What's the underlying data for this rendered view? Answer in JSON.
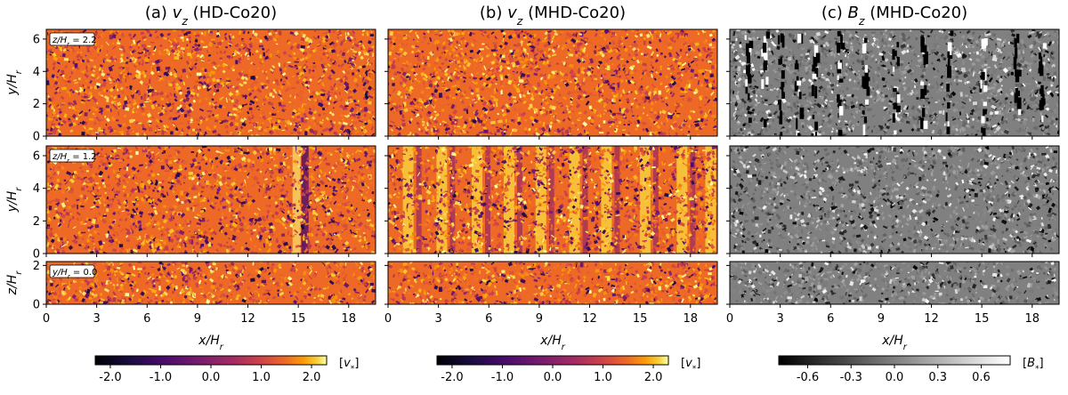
{
  "chart_data": {
    "type": "heatmap",
    "columns": [
      {
        "title": "(a) v_z (HD-Co20)",
        "title_prefix": "(a) ",
        "title_var": "v",
        "title_sub": "z",
        "title_suffix": " (HD-Co20)",
        "field": "vz",
        "run": "HD-Co20",
        "colormap": "inferno"
      },
      {
        "title": "(b) v_z (MHD-Co20)",
        "title_prefix": "(b) ",
        "title_var": "v",
        "title_sub": "z",
        "title_suffix": " (MHD-Co20)",
        "field": "vz",
        "run": "MHD-Co20",
        "colormap": "inferno"
      },
      {
        "title": "(c) B_z (MHD-Co20)",
        "title_prefix": "(c) ",
        "title_var": "B",
        "title_sub": "z",
        "title_suffix": " (MHD-Co20)",
        "field": "Bz",
        "run": "MHD-Co20",
        "colormap": "gray"
      }
    ],
    "rows": [
      {
        "slice": "z/H_r = 2.2",
        "ann_var": "z/H",
        "ann_sub": "r",
        "ann_val": " = 2.2",
        "ylabel_var": "y/H",
        "ylabel_sub": "r",
        "ylim": [
          0,
          6.6
        ],
        "yticks": [
          "0",
          "2",
          "4",
          "6"
        ],
        "ytick_values": [
          0,
          2,
          4,
          6
        ]
      },
      {
        "slice": "z/H_r = 1.2",
        "ann_var": "z/H",
        "ann_sub": "r",
        "ann_val": " = 1.2",
        "ylabel_var": "y/H",
        "ylabel_sub": "r",
        "ylim": [
          0,
          6.6
        ],
        "yticks": [
          "0",
          "2",
          "4",
          "6"
        ],
        "ytick_values": [
          0,
          2,
          4,
          6
        ]
      },
      {
        "slice": "y/H_r = 0.0",
        "ann_var": "y/H",
        "ann_sub": "r",
        "ann_val": " = 0.0",
        "ylabel_var": "z/H",
        "ylabel_sub": "r",
        "ylim": [
          0,
          2.2
        ],
        "yticks": [
          "0",
          "2"
        ],
        "ytick_values": [
          0,
          2
        ]
      }
    ],
    "xlabel_var": "x/H",
    "xlabel_sub": "r",
    "xlim": [
      0,
      19.6
    ],
    "xticks": [
      "0",
      "3",
      "6",
      "9",
      "12",
      "15",
      "18"
    ],
    "xtick_values": [
      0,
      3,
      6,
      9,
      12,
      15,
      18
    ],
    "stripes": {
      "hd_row2_dark_x": [
        15.4
      ],
      "mhd_vz_row2_stripe_x": [
        1.2,
        3.2,
        5.3,
        7.2,
        9.1,
        11.1,
        13.0,
        15.3,
        17.5,
        19.2
      ],
      "mhd_bz_row1_stripe_x": [
        1.0,
        2.0,
        3.0,
        4.0,
        5.0,
        6.5,
        8.0,
        9.8,
        11.5,
        13.0,
        15.0,
        17.0,
        18.5
      ]
    },
    "colorbars": [
      {
        "for": "vz",
        "range": [
          -2.3,
          2.3
        ],
        "ticks": [
          "-2.0",
          "-1.0",
          "0.0",
          "1.0",
          "2.0"
        ],
        "tick_values": [
          -2,
          -1,
          0,
          1,
          2
        ],
        "unit": "[v*]",
        "unit_var": "v",
        "unit_sub": "*",
        "colormap": "inferno"
      },
      {
        "for": "vz",
        "range": [
          -2.3,
          2.3
        ],
        "ticks": [
          "-2.0",
          "-1.0",
          "0.0",
          "1.0",
          "2.0"
        ],
        "tick_values": [
          -2,
          -1,
          0,
          1,
          2
        ],
        "unit": "[v*]",
        "unit_var": "v",
        "unit_sub": "*",
        "colormap": "inferno"
      },
      {
        "for": "Bz",
        "range": [
          -0.8,
          0.8
        ],
        "ticks": [
          "-0.6",
          "-0.3",
          "0.0",
          "0.3",
          "0.6"
        ],
        "tick_values": [
          -0.6,
          -0.3,
          0,
          0.3,
          0.6
        ],
        "unit": "[B*]",
        "unit_var": "B",
        "unit_sub": "*",
        "colormap": "gray"
      }
    ]
  }
}
